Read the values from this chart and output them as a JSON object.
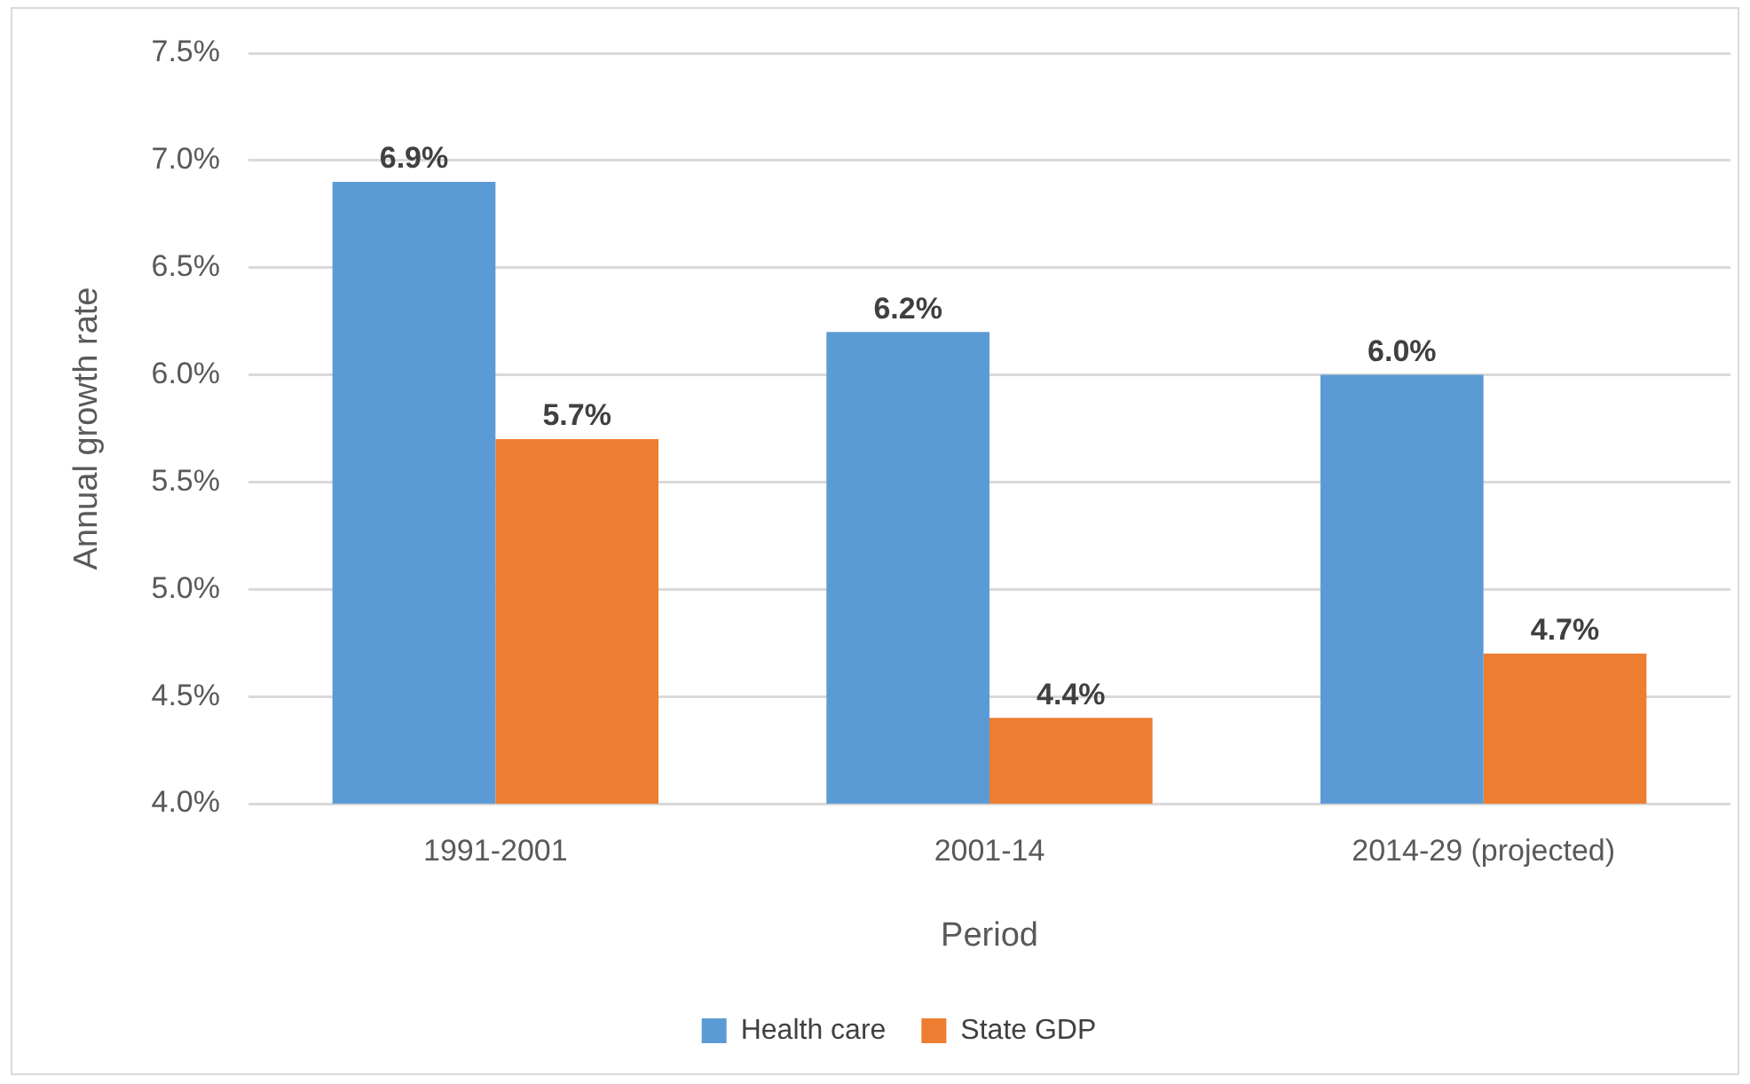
{
  "chart_data": {
    "type": "bar",
    "xlabel": "Period",
    "ylabel": "Annual growth rate",
    "categories": [
      "1991-2001",
      "2001-14",
      "2014-29 (projected)"
    ],
    "series": [
      {
        "name": "Health care",
        "color": "#5b9bd5",
        "values": [
          6.9,
          6.2,
          6.0
        ],
        "value_labels": [
          "6.9%",
          "6.2%",
          "6.0%"
        ]
      },
      {
        "name": "State GDP",
        "color": "#ed7d31",
        "values": [
          5.7,
          4.4,
          4.7
        ],
        "value_labels": [
          "5.7%",
          "4.4%",
          "4.7%"
        ]
      }
    ],
    "ylim": [
      4,
      7.5
    ],
    "yticks": [
      {
        "value": 4,
        "label": "4.0%"
      },
      {
        "value": 4.5,
        "label": "4.5%"
      },
      {
        "value": 5,
        "label": "5.0%"
      },
      {
        "value": 5.5,
        "label": "5.5%"
      },
      {
        "value": 6,
        "label": "6.0%"
      },
      {
        "value": 6.5,
        "label": "6.5%"
      },
      {
        "value": 7,
        "label": "7.0%"
      },
      {
        "value": 7.5,
        "label": "7.5%"
      }
    ],
    "grid": "y",
    "legend": "bottom"
  }
}
